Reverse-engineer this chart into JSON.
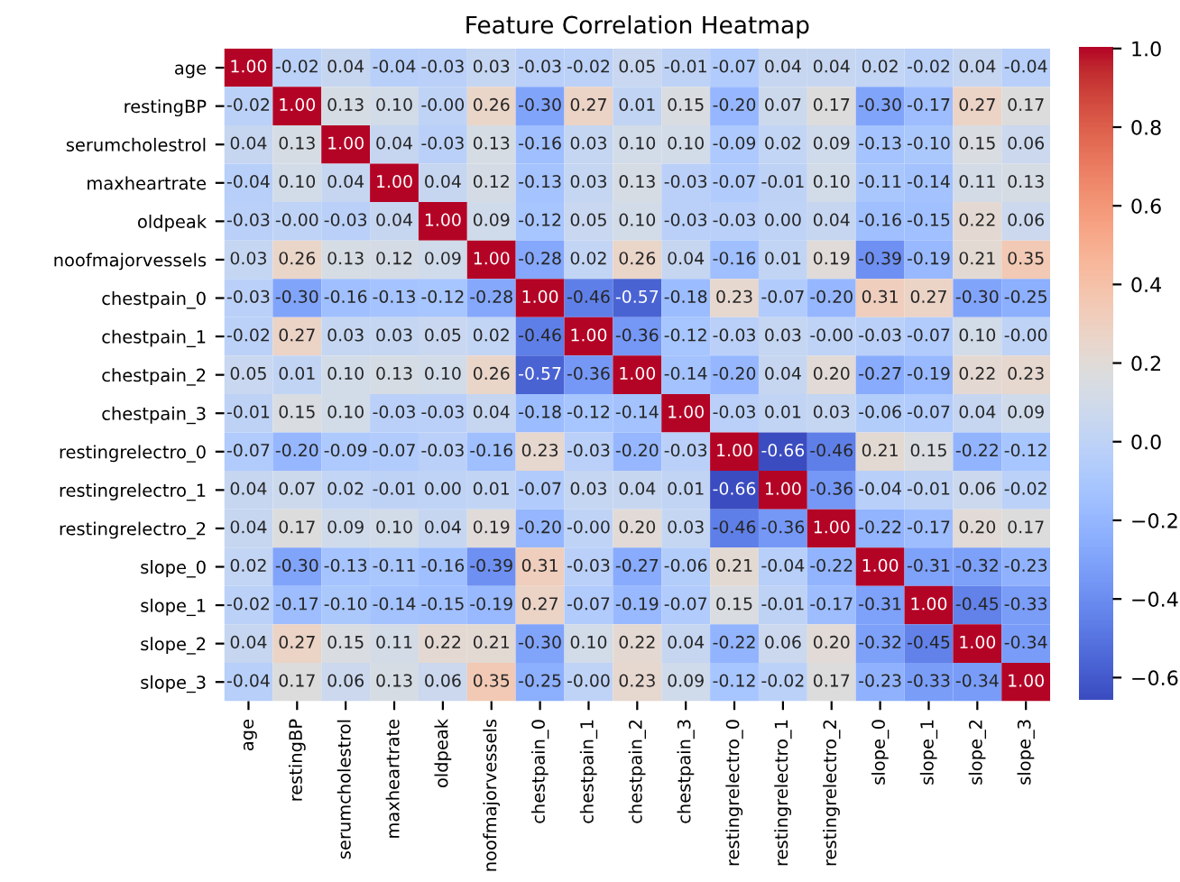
{
  "chart_data": {
    "type": "heatmap",
    "title": "Feature Correlation Heatmap",
    "categories": [
      "age",
      "restingBP",
      "serumcholestrol",
      "maxheartrate",
      "oldpeak",
      "noofmajorvessels",
      "chestpain_0",
      "chestpain_1",
      "chestpain_2",
      "chestpain_3",
      "restingrelectro_0",
      "restingrelectro_1",
      "restingrelectro_2",
      "slope_0",
      "slope_1",
      "slope_2",
      "slope_3"
    ],
    "y_categories": [
      "age",
      "restingBP",
      "serumcholestrol",
      "maxheartrate",
      "oldpeak",
      "noofmajorvessels",
      "chestpain_0",
      "chestpain_1",
      "chestpain_2",
      "chestpain_3",
      "restingrelectro_0",
      "restingrelectro_1",
      "restingrelectro_2",
      "slope_0",
      "slope_1",
      "slope_2",
      "slope_3"
    ],
    "cells": [
      [
        1.0,
        -0.02,
        0.04,
        -0.04,
        -0.03,
        0.03,
        -0.03,
        -0.02,
        0.05,
        -0.01,
        -0.07,
        0.04,
        0.04,
        0.02,
        -0.02,
        0.04,
        -0.04
      ],
      [
        -0.02,
        1.0,
        0.13,
        0.1,
        -0.0,
        0.26,
        -0.3,
        0.27,
        0.01,
        0.15,
        -0.2,
        0.07,
        0.17,
        -0.3,
        -0.17,
        0.27,
        0.17
      ],
      [
        0.04,
        0.13,
        1.0,
        0.04,
        -0.03,
        0.13,
        -0.16,
        0.03,
        0.1,
        0.1,
        -0.09,
        0.02,
        0.09,
        -0.13,
        -0.1,
        0.15,
        0.06
      ],
      [
        -0.04,
        0.1,
        0.04,
        1.0,
        0.04,
        0.12,
        -0.13,
        0.03,
        0.13,
        -0.03,
        -0.07,
        -0.01,
        0.1,
        -0.11,
        -0.14,
        0.11,
        0.13
      ],
      [
        -0.03,
        -0.0,
        -0.03,
        0.04,
        1.0,
        0.09,
        -0.12,
        0.05,
        0.1,
        -0.03,
        -0.03,
        0.0,
        0.04,
        -0.16,
        -0.15,
        0.22,
        0.06
      ],
      [
        0.03,
        0.26,
        0.13,
        0.12,
        0.09,
        1.0,
        -0.28,
        0.02,
        0.26,
        0.04,
        -0.16,
        0.01,
        0.19,
        -0.39,
        -0.19,
        0.21,
        0.35
      ],
      [
        -0.03,
        -0.3,
        -0.16,
        -0.13,
        -0.12,
        -0.28,
        1.0,
        -0.46,
        -0.57,
        -0.18,
        0.23,
        -0.07,
        -0.2,
        0.31,
        0.27,
        -0.3,
        -0.25
      ],
      [
        -0.02,
        0.27,
        0.03,
        0.03,
        0.05,
        0.02,
        -0.46,
        1.0,
        -0.36,
        -0.12,
        -0.03,
        0.03,
        -0.0,
        -0.03,
        -0.07,
        0.1,
        -0.0
      ],
      [
        0.05,
        0.01,
        0.1,
        0.13,
        0.1,
        0.26,
        -0.57,
        -0.36,
        1.0,
        -0.14,
        -0.2,
        0.04,
        0.2,
        -0.27,
        -0.19,
        0.22,
        0.23
      ],
      [
        -0.01,
        0.15,
        0.1,
        -0.03,
        -0.03,
        0.04,
        -0.18,
        -0.12,
        -0.14,
        1.0,
        -0.03,
        0.01,
        0.03,
        -0.06,
        -0.07,
        0.04,
        0.09
      ],
      [
        -0.07,
        -0.2,
        -0.09,
        -0.07,
        -0.03,
        -0.16,
        0.23,
        -0.03,
        -0.2,
        -0.03,
        1.0,
        -0.66,
        -0.46,
        0.21,
        0.15,
        -0.22,
        -0.12
      ],
      [
        0.04,
        0.07,
        0.02,
        -0.01,
        0.0,
        0.01,
        -0.07,
        0.03,
        0.04,
        0.01,
        -0.66,
        1.0,
        -0.36,
        -0.04,
        -0.01,
        0.06,
        -0.02
      ],
      [
        0.04,
        0.17,
        0.09,
        0.1,
        0.04,
        0.19,
        -0.2,
        -0.0,
        0.2,
        0.03,
        -0.46,
        -0.36,
        1.0,
        -0.22,
        -0.17,
        0.2,
        0.17
      ],
      [
        0.02,
        -0.3,
        -0.13,
        -0.11,
        -0.16,
        -0.39,
        0.31,
        -0.03,
        -0.27,
        -0.06,
        0.21,
        -0.04,
        -0.22,
        1.0,
        -0.31,
        -0.32,
        -0.23
      ],
      [
        -0.02,
        -0.17,
        -0.1,
        -0.14,
        -0.15,
        -0.19,
        0.27,
        -0.07,
        -0.19,
        -0.07,
        0.15,
        -0.01,
        -0.17,
        -0.31,
        1.0,
        -0.45,
        -0.33
      ],
      [
        0.04,
        0.27,
        0.15,
        0.11,
        0.22,
        0.21,
        -0.3,
        0.1,
        0.22,
        0.04,
        -0.22,
        0.06,
        0.2,
        -0.32,
        -0.45,
        1.0,
        -0.34
      ],
      [
        -0.04,
        0.17,
        0.06,
        0.13,
        0.06,
        0.35,
        -0.25,
        -0.0,
        0.23,
        0.09,
        -0.12,
        -0.02,
        0.17,
        -0.23,
        -0.33,
        -0.34,
        1.0
      ]
    ],
    "cell_labels": [
      [
        "1.00",
        "-0.02",
        "0.04",
        "-0.04",
        "-0.03",
        "0.03",
        "-0.03",
        "-0.02",
        "0.05",
        "-0.01",
        "-0.07",
        "0.04",
        "0.04",
        "0.02",
        "-0.02",
        "0.04",
        "-0.04"
      ],
      [
        "-0.02",
        "1.00",
        "0.13",
        "0.10",
        "-0.00",
        "0.26",
        "-0.30",
        "0.27",
        "0.01",
        "0.15",
        "-0.20",
        "0.07",
        "0.17",
        "-0.30",
        "-0.17",
        "0.27",
        "0.17"
      ],
      [
        "0.04",
        "0.13",
        "1.00",
        "0.04",
        "-0.03",
        "0.13",
        "-0.16",
        "0.03",
        "0.10",
        "0.10",
        "-0.09",
        "0.02",
        "0.09",
        "-0.13",
        "-0.10",
        "0.15",
        "0.06"
      ],
      [
        "-0.04",
        "0.10",
        "0.04",
        "1.00",
        "0.04",
        "0.12",
        "-0.13",
        "0.03",
        "0.13",
        "-0.03",
        "-0.07",
        "-0.01",
        "0.10",
        "-0.11",
        "-0.14",
        "0.11",
        "0.13"
      ],
      [
        "-0.03",
        "-0.00",
        "-0.03",
        "0.04",
        "1.00",
        "0.09",
        "-0.12",
        "0.05",
        "0.10",
        "-0.03",
        "-0.03",
        "0.00",
        "0.04",
        "-0.16",
        "-0.15",
        "0.22",
        "0.06"
      ],
      [
        "0.03",
        "0.26",
        "0.13",
        "0.12",
        "0.09",
        "1.00",
        "-0.28",
        "0.02",
        "0.26",
        "0.04",
        "-0.16",
        "0.01",
        "0.19",
        "-0.39",
        "-0.19",
        "0.21",
        "0.35"
      ],
      [
        "-0.03",
        "-0.30",
        "-0.16",
        "-0.13",
        "-0.12",
        "-0.28",
        "1.00",
        "-0.46",
        "-0.57",
        "-0.18",
        "0.23",
        "-0.07",
        "-0.20",
        "0.31",
        "0.27",
        "-0.30",
        "-0.25"
      ],
      [
        "-0.02",
        "0.27",
        "0.03",
        "0.03",
        "0.05",
        "0.02",
        "-0.46",
        "1.00",
        "-0.36",
        "-0.12",
        "-0.03",
        "0.03",
        "-0.00",
        "-0.03",
        "-0.07",
        "0.10",
        "-0.00"
      ],
      [
        "0.05",
        "0.01",
        "0.10",
        "0.13",
        "0.10",
        "0.26",
        "-0.57",
        "-0.36",
        "1.00",
        "-0.14",
        "-0.20",
        "0.04",
        "0.20",
        "-0.27",
        "-0.19",
        "0.22",
        "0.23"
      ],
      [
        "-0.01",
        "0.15",
        "0.10",
        "-0.03",
        "-0.03",
        "0.04",
        "-0.18",
        "-0.12",
        "-0.14",
        "1.00",
        "-0.03",
        "0.01",
        "0.03",
        "-0.06",
        "-0.07",
        "0.04",
        "0.09"
      ],
      [
        "-0.07",
        "-0.20",
        "-0.09",
        "-0.07",
        "-0.03",
        "-0.16",
        "0.23",
        "-0.03",
        "-0.20",
        "-0.03",
        "1.00",
        "-0.66",
        "-0.46",
        "0.21",
        "0.15",
        "-0.22",
        "-0.12"
      ],
      [
        "0.04",
        "0.07",
        "0.02",
        "-0.01",
        "0.00",
        "0.01",
        "-0.07",
        "0.03",
        "0.04",
        "0.01",
        "-0.66",
        "1.00",
        "-0.36",
        "-0.04",
        "-0.01",
        "0.06",
        "-0.02"
      ],
      [
        "0.04",
        "0.17",
        "0.09",
        "0.10",
        "0.04",
        "0.19",
        "-0.20",
        "-0.00",
        "0.20",
        "0.03",
        "-0.46",
        "-0.36",
        "1.00",
        "-0.22",
        "-0.17",
        "0.20",
        "0.17"
      ],
      [
        "0.02",
        "-0.30",
        "-0.13",
        "-0.11",
        "-0.16",
        "-0.39",
        "0.31",
        "-0.03",
        "-0.27",
        "-0.06",
        "0.21",
        "-0.04",
        "-0.22",
        "1.00",
        "-0.31",
        "-0.32",
        "-0.23"
      ],
      [
        "-0.02",
        "-0.17",
        "-0.10",
        "-0.14",
        "-0.15",
        "-0.19",
        "0.27",
        "-0.07",
        "-0.19",
        "-0.07",
        "0.15",
        "-0.01",
        "-0.17",
        "-0.31",
        "1.00",
        "-0.45",
        "-0.33"
      ],
      [
        "0.04",
        "0.27",
        "0.15",
        "0.11",
        "0.22",
        "0.21",
        "-0.30",
        "0.10",
        "0.22",
        "0.04",
        "-0.22",
        "0.06",
        "0.20",
        "-0.32",
        "-0.45",
        "1.00",
        "-0.34"
      ],
      [
        "-0.04",
        "0.17",
        "0.06",
        "0.13",
        "0.06",
        "0.35",
        "-0.25",
        "-0.00",
        "0.23",
        "0.09",
        "-0.12",
        "-0.02",
        "0.17",
        "-0.23",
        "-0.33",
        "-0.34",
        "1.00"
      ]
    ],
    "clim": [
      -0.66,
      1.0
    ],
    "cticks": [
      {
        "value": 1.0,
        "label": "1.0"
      },
      0.8,
      0.6,
      0.4,
      0.2,
      {
        "value": 0.0,
        "label": "0.0"
      },
      {
        "value": -0.2,
        "label": "−0.2"
      },
      {
        "value": -0.4,
        "label": "−0.4"
      },
      {
        "value": -0.6,
        "label": "−0.6"
      }
    ],
    "data_labels": true
  }
}
